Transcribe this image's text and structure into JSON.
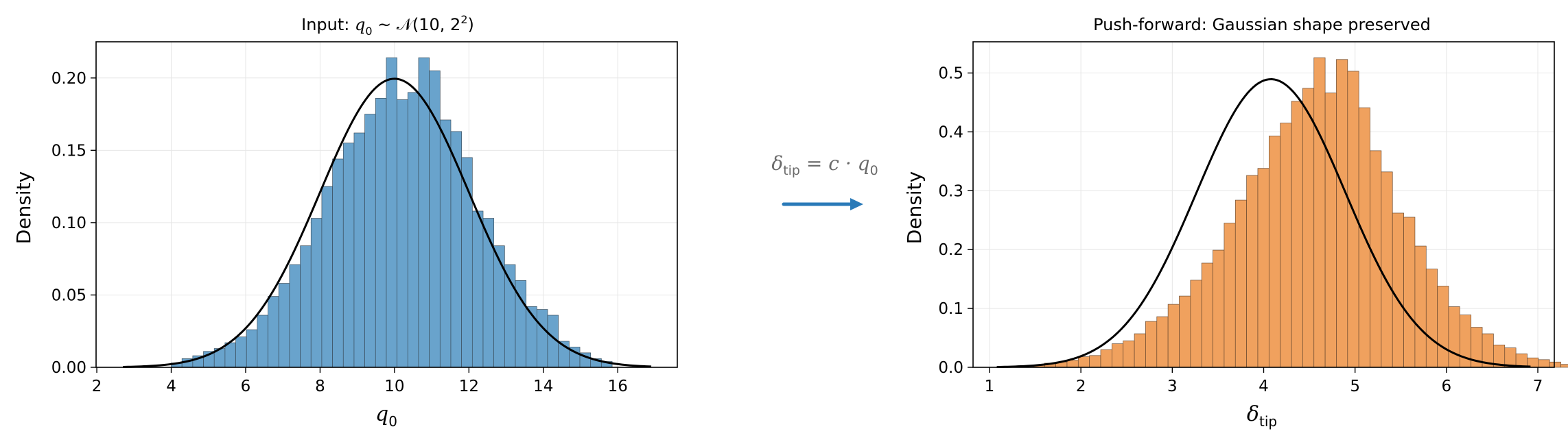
{
  "arrow": {
    "label_main": "δ",
    "label_sub": "tip",
    "label_rest": " = c · q",
    "label_rest_sub": "0",
    "color": "#2a7ab8"
  },
  "chart_data": [
    {
      "type": "histogram",
      "title_prefix": "Input: ",
      "title_math": "q",
      "title_math_sub": "0",
      "title_rest": " ~ 𝒩(10, 2",
      "title_sup": "2",
      "title_end": ")",
      "xlabel": "q",
      "xlabel_sub": "0",
      "ylabel": "Density",
      "xlim": [
        1.98,
        17.6
      ],
      "ylim": [
        0,
        0.225
      ],
      "xticks": [
        2,
        4,
        6,
        8,
        10,
        12,
        14,
        16
      ],
      "yticks": [
        0.0,
        0.05,
        0.1,
        0.15,
        0.2
      ],
      "ytick_labels": [
        "0.00",
        "0.05",
        "0.10",
        "0.15",
        "0.20"
      ],
      "bar_color": "#69a3cc",
      "bar_edge": "#3b4f5e",
      "bin_start": 4.0,
      "bin_width": 0.289,
      "densities": [
        0.003,
        0.006,
        0.008,
        0.011,
        0.013,
        0.017,
        0.021,
        0.026,
        0.036,
        0.049,
        0.058,
        0.071,
        0.084,
        0.103,
        0.125,
        0.144,
        0.155,
        0.162,
        0.175,
        0.186,
        0.214,
        0.185,
        0.19,
        0.214,
        0.205,
        0.171,
        0.163,
        0.145,
        0.108,
        0.103,
        0.084,
        0.071,
        0.06,
        0.042,
        0.04,
        0.036,
        0.018,
        0.014,
        0.01,
        0.006,
        0.004
      ],
      "curve": {
        "mean": 10,
        "sd": 2,
        "x_range": [
          2.7,
          16.9
        ],
        "color": "#000000"
      }
    },
    {
      "type": "histogram",
      "title_prefix": "Push-forward: Gaussian shape preserved",
      "xlabel": "δ",
      "xlabel_sub": "tip",
      "ylabel": "Density",
      "xlim": [
        0.82,
        7.18
      ],
      "ylim": [
        0,
        0.553
      ],
      "xticks": [
        1,
        2,
        3,
        4,
        5,
        6,
        7
      ],
      "yticks": [
        0.0,
        0.1,
        0.2,
        0.3,
        0.4,
        0.5
      ],
      "ytick_labels": [
        "0.0",
        "0.1",
        "0.2",
        "0.3",
        "0.4",
        "0.5"
      ],
      "bar_color": "#f0a15e",
      "bar_edge": "#6a4a30",
      "bin_start": 1.48,
      "bin_width": 0.1228,
      "densities": [
        0.004,
        0.007,
        0.009,
        0.012,
        0.018,
        0.02,
        0.03,
        0.04,
        0.045,
        0.057,
        0.078,
        0.086,
        0.107,
        0.121,
        0.148,
        0.177,
        0.199,
        0.245,
        0.284,
        0.326,
        0.338,
        0.393,
        0.415,
        0.452,
        0.474,
        0.526,
        0.466,
        0.523,
        0.503,
        0.441,
        0.368,
        0.332,
        0.262,
        0.255,
        0.206,
        0.167,
        0.138,
        0.103,
        0.089,
        0.068,
        0.057,
        0.038,
        0.033,
        0.023,
        0.016,
        0.013,
        0.009,
        0.005
      ],
      "curve": {
        "mean": 4.08,
        "sd": 0.815,
        "x_range": [
          1.08,
          6.92
        ],
        "color": "#000000"
      }
    }
  ]
}
